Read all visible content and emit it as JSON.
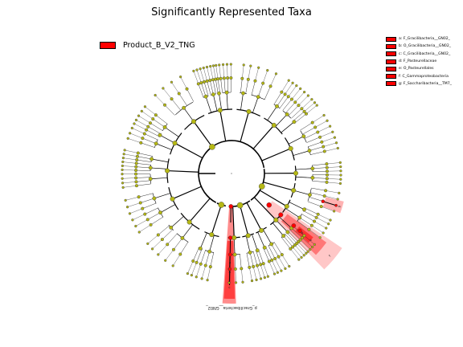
{
  "title": "Significantly Represented Taxa",
  "legend": {
    "label": "Product_B_V2_TNG",
    "color": "#ff0000"
  },
  "taxa_legend": [
    "a: F_Gracilibacteria__GN02_",
    "b: O_Gracilibacteria__GN02_",
    "c: C_Gracilibacteria__GN02_",
    "d: F_Pasteurellaceae",
    "e: O_Pasteurellales",
    "f: C_Gammaproteobacteria",
    "g: F_Saccharibacteria__TM7_"
  ],
  "clade_letters": [
    "a",
    "b",
    "c",
    "d",
    "e",
    "f",
    "g"
  ],
  "clade_name": "p_Gracilibacteria__GN02_",
  "colors": {
    "node": "#b5b814",
    "highlight": "#ff0000",
    "shade": "#ffb0b0"
  }
}
